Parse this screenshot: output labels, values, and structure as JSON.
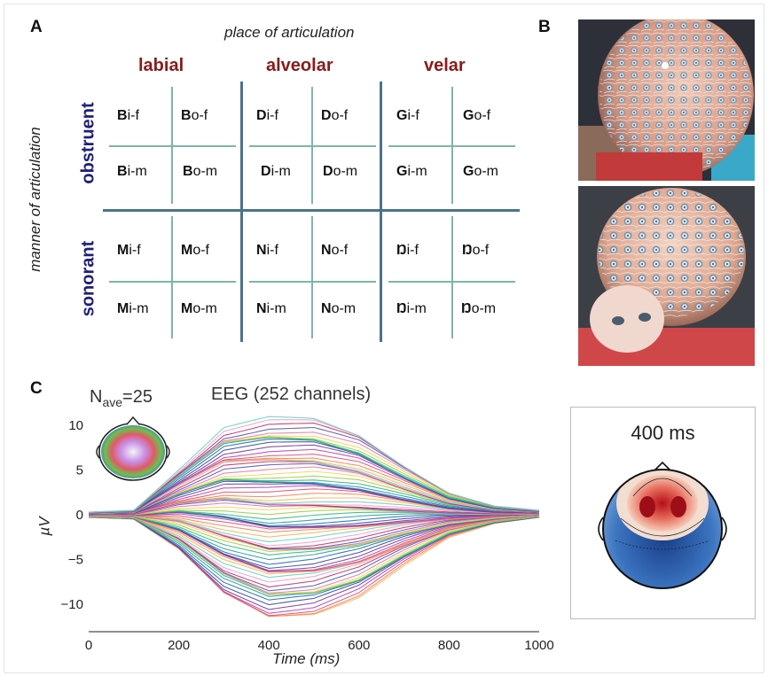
{
  "panels": {
    "a": "A",
    "b": "B",
    "c": "C"
  },
  "table": {
    "header_place": "place of articulation",
    "header_manner": "manner of articulation",
    "places": [
      "labial",
      "alveolar",
      "velar"
    ],
    "manners": [
      "obstruent",
      "sonorant"
    ],
    "rows": [
      [
        [
          "B",
          "i-f"
        ],
        [
          "B",
          "o-f"
        ],
        [
          "D",
          "i-f"
        ],
        [
          "D",
          "o-f"
        ],
        [
          "G",
          "i-f"
        ],
        [
          "G",
          "o-f"
        ]
      ],
      [
        [
          "B",
          "i-m"
        ],
        [
          "B",
          "o-m"
        ],
        [
          "D",
          "i-m"
        ],
        [
          "D",
          "o-m"
        ],
        [
          "G",
          "i-m"
        ],
        [
          "G",
          "o-m"
        ]
      ],
      [
        [
          "M",
          "i-f"
        ],
        [
          "M",
          "o-f"
        ],
        [
          "N",
          "i-f"
        ],
        [
          "N",
          "o-f"
        ],
        [
          "Ŋ",
          "i-f"
        ],
        [
          "Ŋ",
          "o-f"
        ]
      ],
      [
        [
          "M",
          "i-m"
        ],
        [
          "M",
          "o-m"
        ],
        [
          "N",
          "i-m"
        ],
        [
          "N",
          "o-m"
        ],
        [
          "Ŋ",
          "i-m"
        ],
        [
          "Ŋ",
          "o-m"
        ]
      ]
    ]
  },
  "eeg": {
    "nave_main": "N",
    "nave_sub": "ave",
    "nave_value": "=25",
    "title": "EEG (252 channels)",
    "topo_label": "400 ms"
  },
  "chart_data": {
    "type": "line",
    "title": "EEG (252 channels)",
    "xlabel": "Time (ms)",
    "ylabel": "µV",
    "xlim": [
      0,
      1000
    ],
    "ylim": [
      -13,
      12
    ],
    "xticks": [
      0,
      200,
      400,
      600,
      800,
      1000
    ],
    "yticks": [
      10,
      5,
      0,
      -5,
      -10
    ],
    "xtick_labels": [
      "0",
      "200",
      "400",
      "600",
      "800",
      "1000"
    ],
    "ytick_labels": [
      "10",
      "5",
      "0",
      "−5",
      "−10"
    ],
    "grid": false,
    "envelope": {
      "x": [
        0,
        100,
        200,
        300,
        400,
        500,
        600,
        700,
        800,
        900,
        1000
      ],
      "upper": [
        0.3,
        0.5,
        5,
        9.5,
        10.6,
        10.5,
        8.8,
        5.5,
        2.5,
        1,
        0.5
      ],
      "lower": [
        -0.3,
        -0.5,
        -4,
        -9,
        -11.5,
        -11,
        -9,
        -5.5,
        -2.5,
        -1,
        -0.3
      ]
    },
    "series_count": 252
  }
}
